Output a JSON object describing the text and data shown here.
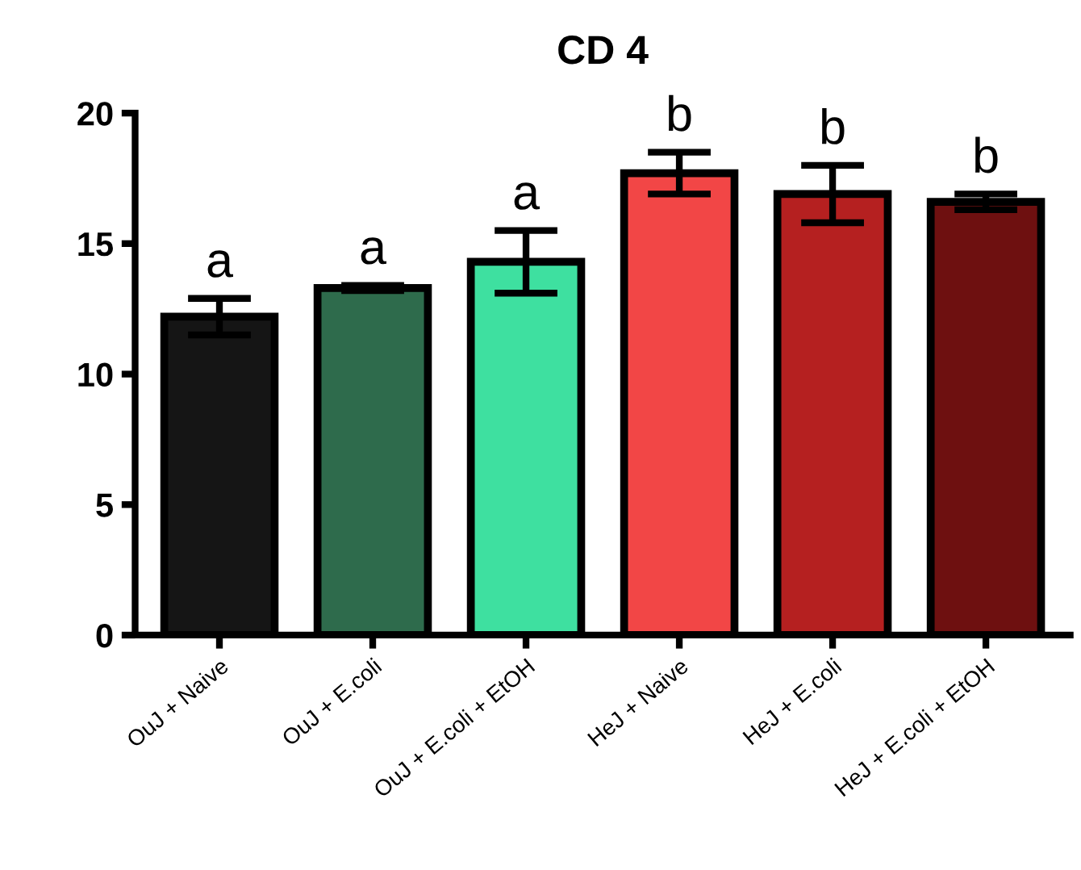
{
  "chart_data": {
    "type": "bar",
    "title": "CD 4",
    "categories": [
      "OuJ + Naive",
      "OuJ + E.coli",
      "OuJ + E.coli + EtOH",
      "HeJ + Naive",
      "HeJ + E.coli",
      "HeJ + E.coli + EtOH"
    ],
    "values": [
      12.2,
      13.3,
      14.3,
      17.7,
      16.9,
      16.6
    ],
    "errors": [
      0.7,
      0.1,
      1.2,
      0.8,
      1.1,
      0.3
    ],
    "colors": [
      "#151515",
      "#2e6b4c",
      "#3ee0a0",
      "#f24646",
      "#b52020",
      "#6e1010"
    ],
    "ylim": [
      0,
      20
    ],
    "yticks": [
      0,
      5,
      10,
      15,
      20
    ],
    "grid": false,
    "annotations": [
      {
        "text": "a",
        "x": "OuJ + Naive",
        "y": 12.9
      },
      {
        "text": "a",
        "x": "OuJ + E.coli",
        "y": 13.4
      },
      {
        "text": "a",
        "x": "OuJ + E.coli + EtOH",
        "y": 15.5
      },
      {
        "text": "b",
        "x": "HeJ + Naive",
        "y": 18.5
      },
      {
        "text": "b",
        "x": "HeJ + E.coli",
        "y": 18.0
      },
      {
        "text": "b",
        "x": "HeJ + E.coli + EtOH",
        "y": 16.9
      }
    ]
  }
}
